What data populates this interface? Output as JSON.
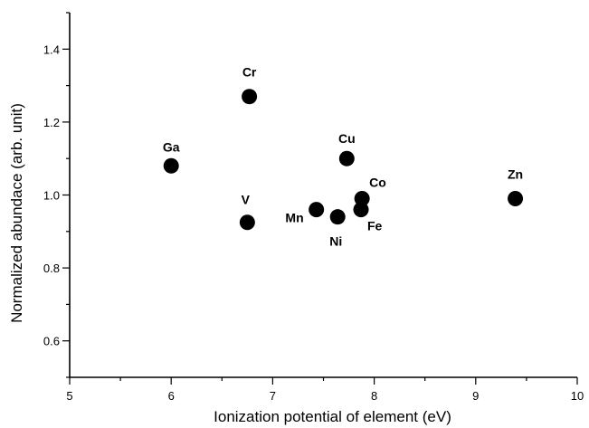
{
  "chart_data": {
    "type": "scatter",
    "xlabel": "Ionization potential of element (eV)",
    "ylabel": "Normalized abundace (arb. unit)",
    "xlim": [
      5,
      10
    ],
    "ylim": [
      0.5,
      1.5
    ],
    "xticks": [
      5,
      6,
      7,
      8,
      9,
      10
    ],
    "yticks": [
      0.6,
      0.8,
      1.0,
      1.2,
      1.4
    ],
    "ytick_labels": [
      "0.6",
      "0.8",
      "1.0",
      "1.2",
      "1.4"
    ],
    "grid": false,
    "marker_color": "#000000",
    "points": [
      {
        "label": "Ga",
        "x": 6.0,
        "y": 1.08
      },
      {
        "label": "Cr",
        "x": 6.77,
        "y": 1.27
      },
      {
        "label": "V",
        "x": 6.75,
        "y": 0.925
      },
      {
        "label": "Mn",
        "x": 7.43,
        "y": 0.96
      },
      {
        "label": "Ni",
        "x": 7.64,
        "y": 0.94
      },
      {
        "label": "Cu",
        "x": 7.73,
        "y": 1.1
      },
      {
        "label": "Co",
        "x": 7.88,
        "y": 0.99
      },
      {
        "label": "Fe",
        "x": 7.87,
        "y": 0.96
      },
      {
        "label": "Zn",
        "x": 9.39,
        "y": 0.99
      }
    ]
  }
}
